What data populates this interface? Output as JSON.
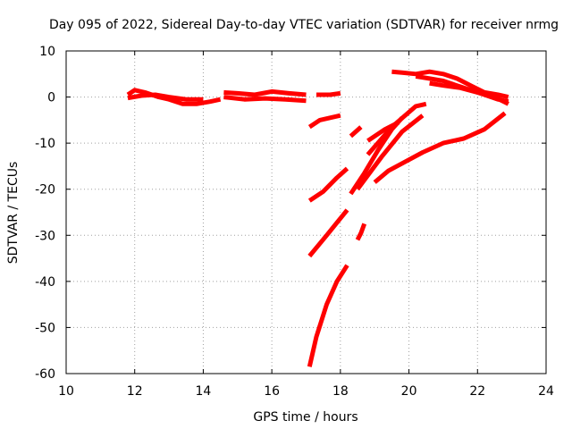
{
  "chart_data": {
    "type": "line",
    "title": "Day 095 of 2022, Sidereal Day-to-day VTEC variation (SDTVAR) for receiver nrmg",
    "xlabel": "GPS time / hours",
    "ylabel": "SDTVAR / TECUs",
    "xlim": [
      10,
      24
    ],
    "ylim": [
      -60,
      10
    ],
    "xticks": [
      10,
      12,
      14,
      16,
      18,
      20,
      22,
      24
    ],
    "yticks": [
      -60,
      -50,
      -40,
      -30,
      -20,
      -10,
      0,
      10
    ],
    "grid": true,
    "legend": "none",
    "color": "#ff0000",
    "series": [
      {
        "x": [
          11.8,
          12.0,
          12.3,
          12.7,
          13.0,
          13.4,
          13.8,
          14.2,
          14.5
        ],
        "y": [
          0.5,
          1.5,
          1.0,
          0.0,
          -0.5,
          -1.5,
          -1.5,
          -1.0,
          -0.5
        ]
      },
      {
        "x": [
          11.8,
          12.2,
          12.6,
          13.0,
          13.5,
          14.0
        ],
        "y": [
          -0.2,
          0.3,
          0.5,
          0.0,
          -0.5,
          -0.5
        ]
      },
      {
        "x": [
          14.6,
          15.0,
          15.5,
          16.0,
          16.5,
          17.0
        ],
        "y": [
          1.0,
          0.8,
          0.5,
          1.2,
          0.8,
          0.5
        ]
      },
      {
        "x": [
          14.6,
          15.2,
          15.8,
          16.4,
          17.0
        ],
        "y": [
          0.0,
          -0.5,
          -0.3,
          -0.5,
          -0.8
        ]
      },
      {
        "x": [
          17.3,
          17.7,
          18.0
        ],
        "y": [
          0.5,
          0.5,
          0.8
        ]
      },
      {
        "x": [
          19.5,
          19.8,
          20.2,
          20.6,
          21.0,
          21.4,
          21.8,
          22.2,
          22.6,
          22.9
        ],
        "y": [
          5.5,
          5.3,
          5.0,
          5.5,
          5.0,
          4.0,
          2.5,
          1.0,
          0.5,
          0.0
        ]
      },
      {
        "x": [
          20.2,
          20.6,
          21.0,
          21.4,
          21.8,
          22.2,
          22.6,
          22.9
        ],
        "y": [
          4.5,
          4.0,
          3.5,
          2.5,
          1.5,
          0.5,
          -0.5,
          -1.0
        ]
      },
      {
        "x": [
          20.6,
          21.0,
          21.5,
          22.0,
          22.5,
          22.9
        ],
        "y": [
          3.0,
          2.5,
          2.0,
          1.0,
          0.0,
          -1.5
        ]
      },
      {
        "x": [
          17.1,
          17.4,
          17.7,
          18.0
        ],
        "y": [
          -6.5,
          -5.0,
          -4.5,
          -4.0
        ]
      },
      {
        "x": [
          18.3,
          18.6
        ],
        "y": [
          -8.5,
          -6.5
        ]
      },
      {
        "x": [
          18.8,
          19.3,
          19.7
        ],
        "y": [
          -9.5,
          -7.0,
          -5.5
        ]
      },
      {
        "x": [
          18.8,
          19.5,
          20.2,
          20.5
        ],
        "y": [
          -12.5,
          -6.5,
          -2.0,
          -1.5
        ]
      },
      {
        "x": [
          18.3,
          18.7,
          19.1,
          19.5,
          19.8
        ],
        "y": [
          -21.0,
          -16.5,
          -11.5,
          -7.0,
          -4.5
        ]
      },
      {
        "x": [
          18.5,
          19.2,
          19.8,
          20.4
        ],
        "y": [
          -20.0,
          -13.0,
          -7.5,
          -4.0
        ]
      },
      {
        "x": [
          19.0,
          19.4,
          19.9,
          20.4,
          21.0,
          21.6,
          22.2,
          22.8
        ],
        "y": [
          -18.5,
          -16.0,
          -14.0,
          -12.0,
          -10.0,
          -9.0,
          -7.0,
          -3.5
        ]
      },
      {
        "x": [
          17.1,
          17.5,
          17.9,
          18.2
        ],
        "y": [
          -22.5,
          -20.5,
          -17.5,
          -15.5
        ]
      },
      {
        "x": [
          17.1,
          17.6,
          18.2
        ],
        "y": [
          -34.5,
          -30.0,
          -24.5
        ]
      },
      {
        "x": [
          18.5,
          18.6,
          18.7
        ],
        "y": [
          -31.0,
          -29.5,
          -27.5
        ]
      },
      {
        "x": [
          17.1,
          17.3,
          17.6,
          17.9,
          18.2
        ],
        "y": [
          -58.5,
          -52.0,
          -45.0,
          -40.0,
          -36.5
        ]
      }
    ]
  }
}
